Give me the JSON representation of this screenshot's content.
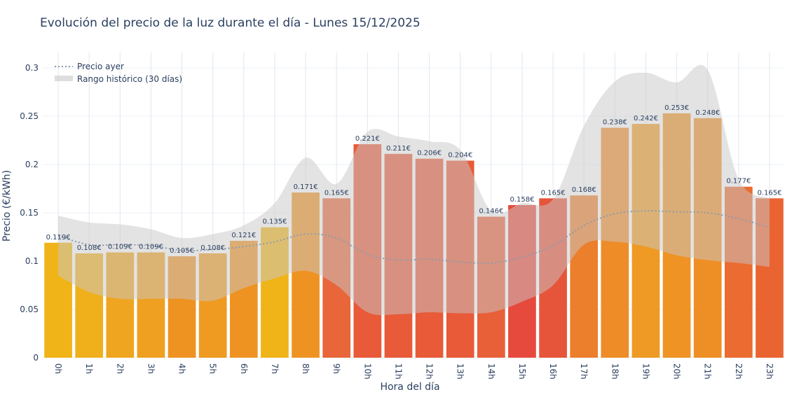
{
  "chart_data": {
    "type": "bar",
    "title": "Evolución del precio de la luz durante el día - Lunes 15/12/2025",
    "xlabel": "Hora del día",
    "ylabel": "Precio (€/kWh)",
    "ylim": [
      0,
      0.315
    ],
    "yticks": [
      0,
      0.05,
      0.1,
      0.15,
      0.2,
      0.25,
      0.3
    ],
    "ytick_labels": [
      "0",
      "0.05",
      "0.1",
      "0.15",
      "0.2",
      "0.25",
      "0.3"
    ],
    "grid": true,
    "legend_position": "top-left",
    "categories": [
      "0h",
      "1h",
      "2h",
      "3h",
      "4h",
      "5h",
      "6h",
      "7h",
      "8h",
      "9h",
      "10h",
      "11h",
      "12h",
      "13h",
      "14h",
      "15h",
      "16h",
      "17h",
      "18h",
      "19h",
      "20h",
      "21h",
      "22h",
      "23h"
    ],
    "values": [
      0.119,
      0.108,
      0.109,
      0.109,
      0.105,
      0.108,
      0.121,
      0.135,
      0.171,
      0.165,
      0.221,
      0.211,
      0.206,
      0.204,
      0.146,
      0.158,
      0.165,
      0.168,
      0.238,
      0.242,
      0.253,
      0.248,
      0.177,
      0.165
    ],
    "data_labels": [
      "0.119€",
      "0.108€",
      "0.109€",
      "0.109€",
      "0.105€",
      "0.108€",
      "0.121€",
      "0.135€",
      "0.171€",
      "0.165€",
      "0.221€",
      "0.211€",
      "0.206€",
      "0.204€",
      "0.146€",
      "0.158€",
      "0.165€",
      "0.168€",
      "0.238€",
      "0.242€",
      "0.253€",
      "0.248€",
      "0.177€",
      "0.165€"
    ],
    "bar_colors": [
      "#f0b418",
      "#f0b01c",
      "#efa51f",
      "#efa020",
      "#ee9322",
      "#ef9a21",
      "#ee9322",
      "#f0b418",
      "#ee9322",
      "#e8663a",
      "#e85a38",
      "#e85a38",
      "#e85a38",
      "#e85a38",
      "#e86038",
      "#e64a3c",
      "#e6553a",
      "#ec7f2c",
      "#ee8c28",
      "#ee9a24",
      "#ef9325",
      "#ee8f26",
      "#eb6b30",
      "#ea6432"
    ],
    "series": [
      {
        "name": "Precio ayer",
        "type": "line",
        "style": "dotted",
        "color": "#8c9bab",
        "values": [
          0.126,
          0.117,
          0.117,
          0.116,
          0.111,
          0.112,
          0.115,
          0.12,
          0.128,
          0.124,
          0.107,
          0.101,
          0.102,
          0.099,
          0.098,
          0.104,
          0.116,
          0.137,
          0.149,
          0.152,
          0.151,
          0.15,
          0.144,
          0.135
        ]
      },
      {
        "name": "Rango histórico (30 días)",
        "type": "band",
        "color": "#c8c8c8",
        "upper": [
          0.147,
          0.14,
          0.138,
          0.133,
          0.124,
          0.128,
          0.137,
          0.16,
          0.207,
          0.18,
          0.234,
          0.229,
          0.224,
          0.215,
          0.152,
          0.16,
          0.164,
          0.24,
          0.286,
          0.295,
          0.285,
          0.298,
          0.185,
          0.165
        ],
        "lower": [
          0.085,
          0.068,
          0.061,
          0.061,
          0.061,
          0.059,
          0.072,
          0.082,
          0.09,
          0.075,
          0.047,
          0.045,
          0.047,
          0.046,
          0.047,
          0.058,
          0.075,
          0.117,
          0.12,
          0.115,
          0.106,
          0.101,
          0.098,
          0.094
        ]
      }
    ]
  }
}
